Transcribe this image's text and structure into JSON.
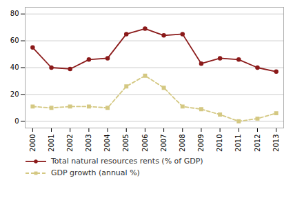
{
  "chart_data": {
    "type": "line",
    "x": [
      2000,
      2001,
      2002,
      2003,
      2004,
      2005,
      2006,
      2007,
      2008,
      2009,
      2010,
      2011,
      2012,
      2013
    ],
    "series": [
      {
        "name": "Total natural resources rents (% of GDP)",
        "color": "#8B1A1A",
        "marker": "circle",
        "line_style": "solid",
        "values": [
          55,
          40,
          39,
          46,
          47,
          65,
          69,
          64,
          65,
          43,
          47,
          46,
          40,
          37
        ]
      },
      {
        "name": "GDP growth (annual %)",
        "color": "#D4C882",
        "marker": "square",
        "line_style": "dashed",
        "values": [
          11,
          10,
          11,
          11,
          10,
          26,
          34,
          25,
          11,
          9,
          5,
          0,
          2,
          6
        ]
      }
    ],
    "xlim": [
      1999.6,
      2013.4
    ],
    "xticks": [
      2000,
      2001,
      2002,
      2003,
      2004,
      2005,
      2006,
      2007,
      2008,
      2009,
      2010,
      2011,
      2012,
      2013
    ],
    "ylim": [
      -5,
      85
    ],
    "yticks": [
      0,
      20,
      40,
      60,
      80
    ],
    "grid": true,
    "legend": "bottom"
  }
}
